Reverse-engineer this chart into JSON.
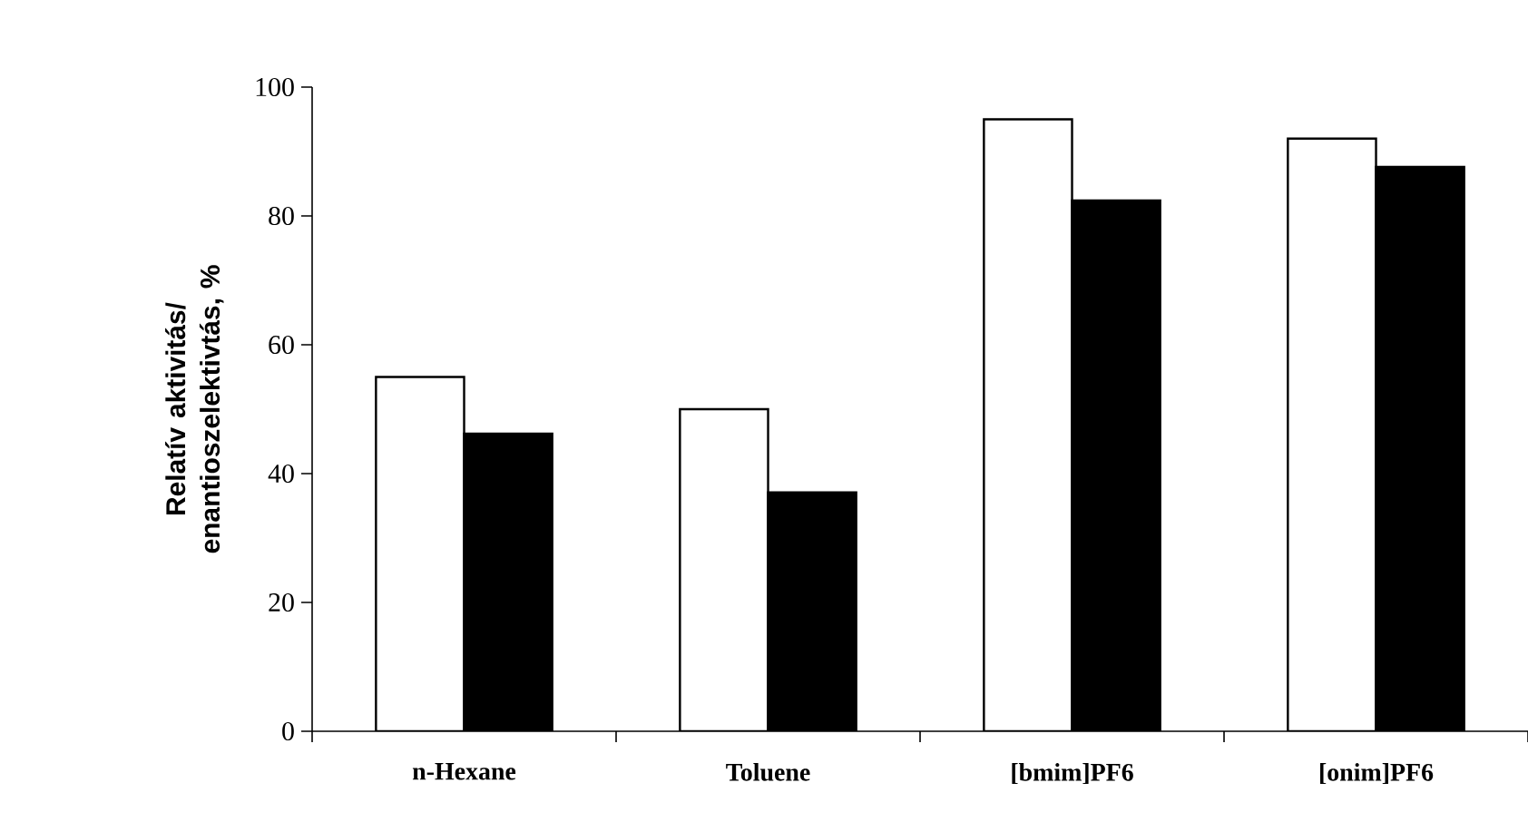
{
  "chart_data": {
    "type": "bar",
    "ylabel": "Relatív aktivitás/ enantioszelektivtás, %",
    "categories": [
      "n-Hexane",
      "Toluene",
      "[bmim]PF6",
      "[onim]PF6"
    ],
    "series": [
      {
        "color": "#ffffff",
        "values": [
          55,
          50,
          95,
          92
        ]
      },
      {
        "color": "#000000",
        "values": [
          46.2,
          37.1,
          82.4,
          87.6
        ]
      }
    ],
    "ylim": [
      0,
      100
    ],
    "yticks": [
      0,
      20,
      40,
      60,
      80,
      100
    ],
    "grid": false
  }
}
